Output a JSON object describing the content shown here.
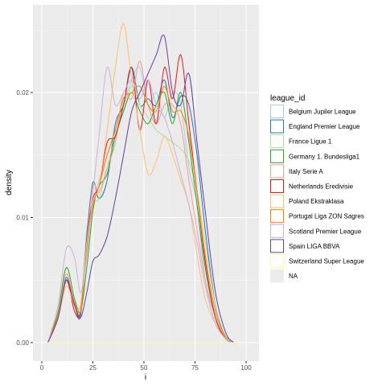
{
  "chart_data": {
    "type": "line",
    "title": "",
    "xlabel": "i",
    "ylabel": "density",
    "xlim": [
      0,
      100
    ],
    "ylim": [
      0,
      0.026
    ],
    "x_ticks": [
      0,
      25,
      50,
      75,
      100
    ],
    "x_tick_labels": [
      "0",
      "25",
      "50",
      "75",
      "100"
    ],
    "y_ticks": [
      0,
      0.01,
      0.02
    ],
    "y_tick_labels": [
      "0.00",
      "0.01",
      "0.02"
    ],
    "grid": true,
    "legend": {
      "title": "league_id",
      "placement": "right",
      "items": [
        {
          "label": "Belgium Jupiler League",
          "color": "#A6CEE3"
        },
        {
          "label": "England Premier League",
          "color": "#1F78B4"
        },
        {
          "label": "France Ligue 1",
          "color": "#B2DF8A"
        },
        {
          "label": "Germany 1. Bundesliga1",
          "color": "#33A02C"
        },
        {
          "label": "Italy Serie A",
          "color": "#FB9A99"
        },
        {
          "label": "Netherlands Eredivisie",
          "color": "#E31A1C"
        },
        {
          "label": "Poland Ekstraklasa",
          "color": "#FDBF6F"
        },
        {
          "label": "Portugal Liga ZON Sagres",
          "color": "#FF7F00"
        },
        {
          "label": "Scotland Premier League",
          "color": "#CAB2D6"
        },
        {
          "label": "Spain LIGA BBVA",
          "color": "#6A3D9A"
        },
        {
          "label": "Switzerland Super League",
          "color": "#FFFF99"
        },
        {
          "label": "NA",
          "color": "#F0F0F0"
        }
      ]
    },
    "series": [
      {
        "color": "#A6CEE3",
        "x": [
          3,
          8,
          12,
          16,
          19,
          22,
          25,
          28,
          32,
          36,
          40,
          44,
          48,
          52,
          56,
          60,
          64,
          68,
          72,
          76,
          80,
          85,
          90,
          94
        ],
        "y": [
          0,
          0.002,
          0.005,
          0.003,
          0.003,
          0.009,
          0.011,
          0.013,
          0.015,
          0.017,
          0.019,
          0.021,
          0.022,
          0.019,
          0.02,
          0.018,
          0.02,
          0.019,
          0.014,
          0.011,
          0.005,
          0.002,
          0.0005,
          0
        ]
      },
      {
        "color": "#1F78B4",
        "x": [
          3,
          8,
          12,
          16,
          19,
          22,
          25,
          28,
          32,
          36,
          40,
          44,
          48,
          52,
          56,
          60,
          64,
          68,
          72,
          76,
          80,
          85,
          90,
          94
        ],
        "y": [
          0,
          0.002,
          0.0052,
          0.003,
          0.0022,
          0.0085,
          0.0128,
          0.0115,
          0.013,
          0.0175,
          0.019,
          0.022,
          0.019,
          0.0195,
          0.019,
          0.021,
          0.018,
          0.0197,
          0.019,
          0.015,
          0.009,
          0.003,
          0.0005,
          0
        ]
      },
      {
        "color": "#B2DF8A",
        "x": [
          3,
          8,
          12,
          16,
          19,
          22,
          25,
          28,
          32,
          36,
          40,
          44,
          48,
          52,
          56,
          60,
          64,
          68,
          72,
          76,
          80,
          85,
          90,
          94
        ],
        "y": [
          0,
          0.002,
          0.0048,
          0.0032,
          0.003,
          0.007,
          0.011,
          0.0115,
          0.014,
          0.0165,
          0.0185,
          0.0205,
          0.019,
          0.018,
          0.017,
          0.0165,
          0.016,
          0.0155,
          0.0145,
          0.012,
          0.008,
          0.003,
          0.0005,
          0
        ]
      },
      {
        "color": "#33A02C",
        "x": [
          3,
          8,
          12,
          16,
          19,
          22,
          25,
          28,
          32,
          36,
          40,
          44,
          48,
          52,
          56,
          60,
          64,
          68,
          72,
          76,
          80,
          85,
          90,
          94
        ],
        "y": [
          0,
          0.0025,
          0.006,
          0.0035,
          0.0025,
          0.006,
          0.0105,
          0.0125,
          0.0135,
          0.0165,
          0.0185,
          0.02,
          0.0185,
          0.0175,
          0.019,
          0.02,
          0.0175,
          0.02,
          0.016,
          0.011,
          0.006,
          0.002,
          0.0003,
          0
        ]
      },
      {
        "color": "#FB9A99",
        "x": [
          3,
          8,
          12,
          16,
          19,
          22,
          25,
          28,
          32,
          36,
          40,
          44,
          48,
          52,
          56,
          60,
          64,
          68,
          72,
          76,
          80,
          85,
          90,
          94
        ],
        "y": [
          0,
          0.002,
          0.0055,
          0.003,
          0.0025,
          0.008,
          0.0125,
          0.012,
          0.014,
          0.016,
          0.02,
          0.0195,
          0.0225,
          0.019,
          0.0175,
          0.019,
          0.019,
          0.0175,
          0.013,
          0.009,
          0.005,
          0.002,
          0.0004,
          0
        ]
      },
      {
        "color": "#E31A1C",
        "x": [
          3,
          8,
          12,
          16,
          19,
          22,
          25,
          28,
          32,
          36,
          40,
          44,
          48,
          52,
          56,
          60,
          64,
          68,
          72,
          76,
          80,
          85,
          90,
          94
        ],
        "y": [
          0,
          0.002,
          0.005,
          0.0025,
          0.0025,
          0.008,
          0.0115,
          0.0125,
          0.016,
          0.0165,
          0.019,
          0.022,
          0.017,
          0.021,
          0.0175,
          0.022,
          0.0195,
          0.023,
          0.0175,
          0.012,
          0.0065,
          0.002,
          0.0003,
          0
        ]
      },
      {
        "color": "#FDBF6F",
        "x": [
          3,
          8,
          12,
          16,
          19,
          22,
          25,
          28,
          32,
          36,
          40,
          44,
          48,
          52,
          56,
          60,
          64,
          68,
          72,
          76,
          80,
          85,
          90,
          94
        ],
        "y": [
          0,
          0.002,
          0.0045,
          0.003,
          0.003,
          0.008,
          0.011,
          0.0125,
          0.017,
          0.022,
          0.0255,
          0.021,
          0.017,
          0.0135,
          0.0145,
          0.0165,
          0.015,
          0.013,
          0.011,
          0.007,
          0.0035,
          0.0015,
          0.0003,
          0
        ]
      },
      {
        "color": "#FF7F00",
        "x": [
          3,
          8,
          12,
          16,
          19,
          22,
          25,
          28,
          32,
          36,
          40,
          44,
          48,
          52,
          56,
          60,
          64,
          68,
          72,
          76,
          80,
          85,
          90,
          94
        ],
        "y": [
          0,
          0.0022,
          0.005,
          0.0032,
          0.0025,
          0.0075,
          0.011,
          0.0125,
          0.015,
          0.017,
          0.0195,
          0.02,
          0.0205,
          0.019,
          0.0185,
          0.0205,
          0.0185,
          0.0185,
          0.0165,
          0.012,
          0.007,
          0.0025,
          0.0004,
          0
        ]
      },
      {
        "color": "#CAB2D6",
        "x": [
          3,
          8,
          12,
          16,
          19,
          22,
          25,
          28,
          32,
          36,
          40,
          44,
          48,
          52,
          56,
          60,
          64,
          68,
          72,
          76,
          80,
          85,
          90,
          94
        ],
        "y": [
          0,
          0.003,
          0.0075,
          0.0068,
          0.004,
          0.007,
          0.012,
          0.0165,
          0.022,
          0.019,
          0.02,
          0.021,
          0.0195,
          0.021,
          0.019,
          0.018,
          0.016,
          0.0135,
          0.011,
          0.008,
          0.0045,
          0.0015,
          0.0003,
          0
        ]
      },
      {
        "color": "#6A3D9A",
        "x": [
          3,
          8,
          12,
          16,
          19,
          22,
          25,
          28,
          32,
          36,
          40,
          44,
          48,
          52,
          56,
          60,
          64,
          68,
          72,
          76,
          80,
          85,
          90,
          94
        ],
        "y": [
          0,
          0.002,
          0.005,
          0.003,
          0.002,
          0.004,
          0.0065,
          0.007,
          0.0085,
          0.0115,
          0.015,
          0.0185,
          0.02,
          0.0215,
          0.023,
          0.0245,
          0.02,
          0.019,
          0.0215,
          0.016,
          0.0105,
          0.004,
          0.0008,
          0
        ]
      },
      {
        "color": "#FFFF99",
        "x": [
          3,
          10,
          20,
          30,
          40,
          50,
          60,
          70,
          80,
          90,
          97
        ],
        "y": [
          0,
          0,
          0,
          0,
          0,
          0,
          0,
          0,
          0,
          0,
          0
        ]
      }
    ]
  }
}
